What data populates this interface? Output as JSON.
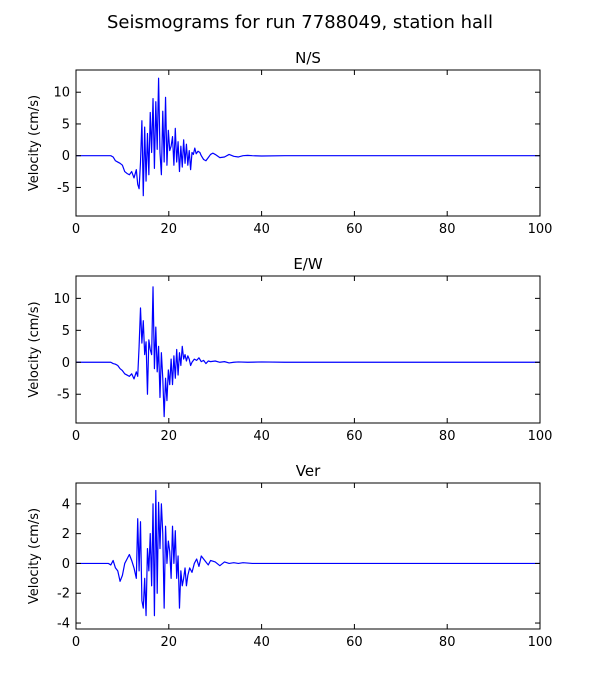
{
  "suptitle": "Seismograms for run 7788049, station hall",
  "chart_data": [
    {
      "type": "line",
      "title": "N/S",
      "xlabel": "",
      "ylabel": "Velocity (cm/s)",
      "xlim": [
        0,
        100
      ],
      "ylim": [
        -9.5,
        13.5
      ],
      "xticks": [
        0,
        20,
        40,
        60,
        80,
        100
      ],
      "yticks": [
        -5,
        0,
        5,
        10
      ],
      "grid": false,
      "series": [
        {
          "color": "#0000ff",
          "x": [
            0,
            7.5,
            8,
            8.5,
            9,
            9.5,
            10,
            10.5,
            11,
            11.5,
            12,
            12.5,
            13,
            13.3,
            13.6,
            13.9,
            14.2,
            14.5,
            14.8,
            15.1,
            15.4,
            15.7,
            16,
            16.3,
            16.6,
            16.9,
            17.2,
            17.5,
            17.8,
            18.1,
            18.4,
            18.7,
            19,
            19.3,
            19.6,
            19.9,
            20.2,
            20.5,
            20.8,
            21.1,
            21.4,
            21.7,
            22,
            22.3,
            22.6,
            22.9,
            23.2,
            23.5,
            23.8,
            24.1,
            24.4,
            24.7,
            25,
            25.3,
            25.6,
            25.9,
            26.3,
            26.7,
            27,
            27.5,
            28,
            28.5,
            29,
            29.5,
            30,
            31,
            32,
            33,
            34,
            35,
            36,
            37,
            38,
            40,
            45,
            50,
            100
          ],
          "y": [
            0,
            0,
            -0.2,
            -0.8,
            -1,
            -1.2,
            -1.5,
            -2.5,
            -2.8,
            -3,
            -2.5,
            -3.5,
            -2.2,
            -4.5,
            -5.2,
            -1,
            5.5,
            -6.3,
            4.5,
            -4,
            3.5,
            -3,
            6.8,
            0.5,
            9,
            -2,
            8.5,
            1,
            12.2,
            0.5,
            -3,
            7,
            -1,
            9.2,
            -1.5,
            4,
            0.8,
            1.5,
            3,
            -1.5,
            4.3,
            -1,
            2.2,
            -2.5,
            1.5,
            -1.8,
            2.5,
            -1.2,
            1.8,
            -1.5,
            0.8,
            -2.2,
            0.5,
            0.2,
            1.2,
            0.3,
            0.7,
            0.5,
            0,
            -0.6,
            -0.8,
            -0.3,
            0.2,
            0.4,
            0.2,
            -0.3,
            -0.2,
            0.2,
            -0.1,
            -0.2,
            0,
            0.05,
            0,
            -0.05,
            0,
            0,
            0
          ]
        }
      ]
    },
    {
      "type": "line",
      "title": "E/W",
      "xlabel": "",
      "ylabel": "Velocity (cm/s)",
      "xlim": [
        0,
        100
      ],
      "ylim": [
        -9.5,
        13.5
      ],
      "xticks": [
        0,
        20,
        40,
        60,
        80,
        100
      ],
      "yticks": [
        -5,
        0,
        5,
        10
      ],
      "grid": false,
      "series": [
        {
          "color": "#0000ff",
          "x": [
            0,
            7.5,
            8,
            8.5,
            9,
            9.5,
            10,
            10.5,
            11,
            11.5,
            12,
            12.5,
            13,
            13.3,
            13.6,
            13.9,
            14.2,
            14.5,
            14.8,
            15.1,
            15.4,
            15.7,
            16,
            16.3,
            16.6,
            16.9,
            17.2,
            17.5,
            17.8,
            18.1,
            18.4,
            18.7,
            19,
            19.3,
            19.6,
            19.9,
            20.2,
            20.5,
            20.8,
            21.1,
            21.4,
            21.7,
            22,
            22.3,
            22.6,
            22.9,
            23.2,
            23.5,
            23.8,
            24.1,
            24.4,
            24.7,
            25,
            25.5,
            26,
            26.5,
            27,
            27.5,
            28,
            28.5,
            29,
            30,
            31,
            32,
            33,
            34,
            35,
            37,
            40,
            45,
            50,
            100
          ],
          "y": [
            0,
            0,
            -0.2,
            -0.3,
            -0.5,
            -1,
            -1.3,
            -1.8,
            -2,
            -2.2,
            -1.8,
            -2.6,
            -1.5,
            -2.2,
            2.5,
            8.5,
            3,
            6.5,
            1.2,
            3.2,
            -5,
            3.5,
            2,
            1.2,
            11.8,
            -1,
            5.5,
            -1.5,
            2.5,
            -5.5,
            1.5,
            -2.5,
            -8.5,
            -2.5,
            -6,
            -1.2,
            -3.5,
            0.5,
            -3.5,
            1,
            -2.5,
            2,
            -2,
            1.5,
            -0.5,
            2.5,
            0.5,
            1.2,
            0.2,
            1,
            0.5,
            -0.5,
            0,
            0.5,
            0.3,
            0.7,
            0.1,
            0.3,
            -0.2,
            0.2,
            0.1,
            0.2,
            0,
            0.1,
            -0.1,
            0,
            0.05,
            0,
            0.05,
            0,
            0,
            0
          ]
        }
      ]
    },
    {
      "type": "line",
      "title": "Ver",
      "xlabel": "",
      "ylabel": "Velocity (cm/s)",
      "xlim": [
        0,
        100
      ],
      "ylim": [
        -4.4,
        5.4
      ],
      "xticks": [
        0,
        20,
        40,
        60,
        80,
        100
      ],
      "yticks": [
        -4,
        -2,
        0,
        2,
        4
      ],
      "grid": false,
      "series": [
        {
          "color": "#0000ff",
          "x": [
            0,
            7,
            7.5,
            8,
            8.5,
            9,
            9.5,
            10,
            10.5,
            11,
            11.5,
            12,
            12.5,
            13,
            13.3,
            13.6,
            13.9,
            14.2,
            14.5,
            14.8,
            15.1,
            15.4,
            15.7,
            16,
            16.3,
            16.6,
            16.9,
            17.2,
            17.5,
            17.8,
            18.1,
            18.4,
            18.7,
            19,
            19.3,
            19.6,
            19.9,
            20.2,
            20.5,
            20.8,
            21.1,
            21.4,
            21.7,
            22,
            22.3,
            22.6,
            22.9,
            23.2,
            23.5,
            23.8,
            24.1,
            24.5,
            25,
            25.5,
            26,
            26.5,
            27,
            27.5,
            28,
            28.5,
            29,
            30,
            31,
            32,
            33,
            34,
            35,
            36,
            38,
            40,
            45,
            50,
            100
          ],
          "y": [
            0,
            0,
            -0.1,
            0.2,
            -0.3,
            -0.5,
            -1.2,
            -0.8,
            0,
            0.3,
            0.6,
            0.2,
            -0.3,
            -1,
            3,
            -0.5,
            2.8,
            -2.5,
            -3,
            -1,
            -3.5,
            1,
            -0.5,
            2,
            -1.5,
            4,
            -3.5,
            4.9,
            -2,
            4.1,
            1,
            4,
            2,
            -3,
            2.5,
            0,
            1.5,
            0.8,
            -1,
            2.5,
            0,
            2.2,
            -1,
            0.5,
            -3,
            -0.5,
            -1.5,
            -1,
            -0.3,
            -1.5,
            -0.8,
            -0.3,
            -0.6,
            0,
            0.3,
            -0.2,
            0.5,
            0.3,
            0.1,
            -0.1,
            0.2,
            0.1,
            -0.15,
            0.1,
            0,
            0.05,
            0,
            0.05,
            0,
            0,
            0,
            0,
            0
          ]
        }
      ]
    }
  ]
}
